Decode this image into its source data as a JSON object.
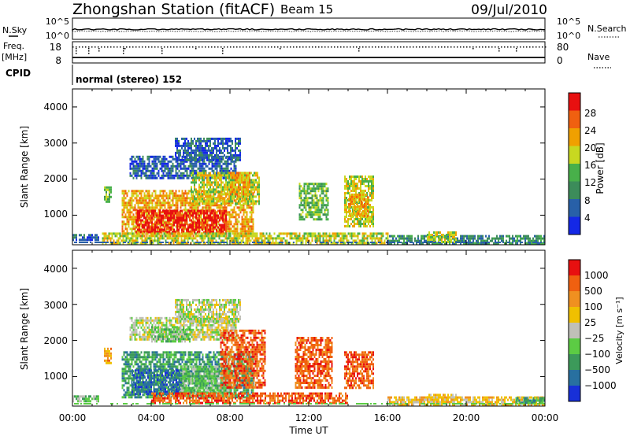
{
  "header": {
    "station": "Zhongshan Station (fitACF)",
    "beam": "Beam 15",
    "date": "09/Jul/2010"
  },
  "strip": {
    "nsky_label": "N.Sky",
    "nsearch_label": "N.Search",
    "nsky_ticks": [
      "10^5",
      "10^0"
    ],
    "nsearch_ticks": [
      "10^5",
      "10^0"
    ],
    "freq_label_1": "Freq.",
    "freq_label_2": "[MHz]",
    "freq_ticks": [
      "18",
      "8"
    ],
    "nave_label": "Nave",
    "nave_ticks": [
      "80",
      "0"
    ],
    "cpid_label": "CPID",
    "cpid_text": "normal (stereo) 152"
  },
  "chart_data": [
    {
      "type": "heatmap",
      "panel": "power",
      "ylabel": "Slant Range [km]",
      "xlabel": "",
      "yticks": [
        "1000",
        "2000",
        "3000",
        "4000"
      ],
      "ylim": [
        180,
        4500
      ],
      "xlim": [
        0,
        24
      ],
      "colorbar_label": "Power [dB]",
      "colorbar_ticks": [
        "4",
        "8",
        "12",
        "16",
        "20",
        "24",
        "28"
      ],
      "colorbar_colors": [
        "#1428e6",
        "#2860a8",
        "#3c8c5a",
        "#48b04a",
        "#c8d820",
        "#f0a000",
        "#f06010",
        "#e81010"
      ],
      "regions": [
        {
          "t": [
            0.0,
            1.3
          ],
          "r": [
            300,
            480
          ],
          "level": 1
        },
        {
          "t": [
            1.6,
            2.0
          ],
          "r": [
            1400,
            1800
          ],
          "level": 3
        },
        {
          "t": [
            2.5,
            9.2
          ],
          "r": [
            400,
            1700
          ],
          "level": 5
        },
        {
          "t": [
            3.2,
            7.8
          ],
          "r": [
            550,
            1150
          ],
          "level": 7
        },
        {
          "t": [
            2.9,
            8.3
          ],
          "r": [
            2000,
            2650
          ],
          "level": 1
        },
        {
          "t": [
            5.2,
            8.5
          ],
          "r": [
            2550,
            3150
          ],
          "level": 1
        },
        {
          "t": [
            6.0,
            9.5
          ],
          "r": [
            1300,
            2200
          ],
          "level": 4
        },
        {
          "t": [
            8.0,
            9.0
          ],
          "r": [
            1600,
            2200
          ],
          "level": 5
        },
        {
          "t": [
            1.5,
            16.0
          ],
          "r": [
            250,
            520
          ],
          "level": 4
        },
        {
          "t": [
            11.5,
            13.0
          ],
          "r": [
            900,
            1900
          ],
          "level": 3
        },
        {
          "t": [
            13.8,
            15.3
          ],
          "r": [
            700,
            2100
          ],
          "level": 4
        },
        {
          "t": [
            14.0,
            15.0
          ],
          "r": [
            1000,
            1600
          ],
          "level": 5
        },
        {
          "t": [
            16.0,
            24.0
          ],
          "r": [
            250,
            450
          ],
          "level": 2
        },
        {
          "t": [
            18.0,
            19.5
          ],
          "r": [
            280,
            550
          ],
          "level": 4
        }
      ]
    },
    {
      "type": "heatmap",
      "panel": "velocity",
      "ylabel": "Slant Range [km]",
      "xlabel": "Time UT",
      "yticks": [
        "1000",
        "2000",
        "3000",
        "4000"
      ],
      "xticks": [
        "00:00",
        "04:00",
        "08:00",
        "12:00",
        "16:00",
        "20:00",
        "00:00"
      ],
      "ylim": [
        180,
        4500
      ],
      "xlim": [
        0,
        24
      ],
      "colorbar_label": "Velocity [m s⁻¹]",
      "colorbar_ticks": [
        "1000",
        "500",
        "100",
        "25",
        "−25",
        "−100",
        "−500",
        "−1000"
      ],
      "colorbar_colors": [
        "#1830d8",
        "#2870a0",
        "#3c9a5a",
        "#5ccc44",
        "#c0c0b8",
        "#f0c000",
        "#f09020",
        "#f06010",
        "#e81010"
      ],
      "regions": [
        {
          "t": [
            0.0,
            1.3
          ],
          "r": [
            300,
            480
          ],
          "level": 3
        },
        {
          "t": [
            1.6,
            2.0
          ],
          "r": [
            1400,
            1800
          ],
          "level": 6
        },
        {
          "t": [
            2.5,
            9.2
          ],
          "r": [
            400,
            1700
          ],
          "level": 2
        },
        {
          "t": [
            3.0,
            5.5
          ],
          "r": [
            500,
            1200
          ],
          "level": 1
        },
        {
          "t": [
            5.5,
            8.0
          ],
          "r": [
            500,
            1300
          ],
          "level": 3
        },
        {
          "t": [
            2.9,
            8.3
          ],
          "r": [
            2000,
            2650
          ],
          "level": 4
        },
        {
          "t": [
            5.2,
            8.5
          ],
          "r": [
            2550,
            3150
          ],
          "level": 4
        },
        {
          "t": [
            4.0,
            6.0
          ],
          "r": [
            2000,
            2400
          ],
          "level": 3
        },
        {
          "t": [
            7.5,
            9.8
          ],
          "r": [
            700,
            2300
          ],
          "level": 7
        },
        {
          "t": [
            4.0,
            14.0
          ],
          "r": [
            250,
            560
          ],
          "level": 7
        },
        {
          "t": [
            11.3,
            13.2
          ],
          "r": [
            700,
            2100
          ],
          "level": 7
        },
        {
          "t": [
            13.8,
            15.3
          ],
          "r": [
            700,
            1700
          ],
          "level": 7
        },
        {
          "t": [
            16.0,
            24.0
          ],
          "r": [
            250,
            450
          ],
          "level": 5
        },
        {
          "t": [
            18.0,
            19.5
          ],
          "r": [
            280,
            520
          ],
          "level": 5
        },
        {
          "t": [
            22.5,
            24.0
          ],
          "r": [
            280,
            430
          ],
          "level": 2
        }
      ]
    }
  ]
}
